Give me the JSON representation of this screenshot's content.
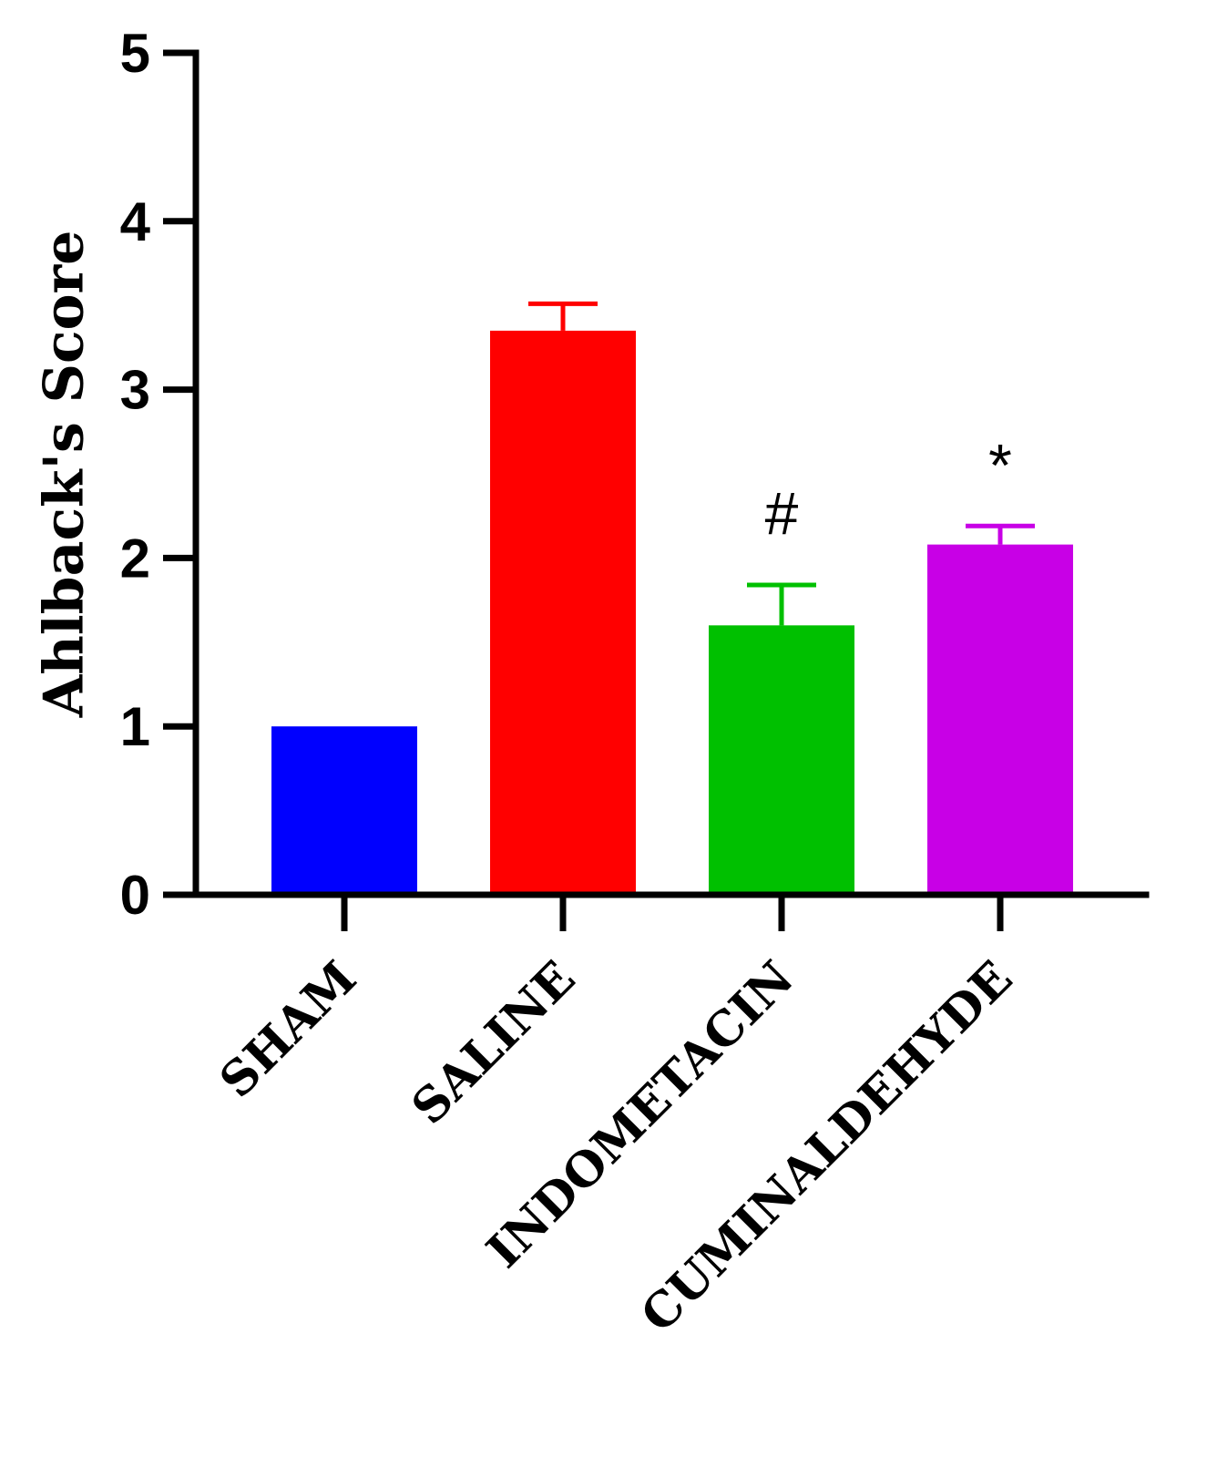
{
  "chart_data": {
    "type": "bar",
    "title": "",
    "xlabel": "",
    "ylabel": "Ahlback's Score",
    "ylim": [
      0,
      5
    ],
    "yticks": [
      "0",
      "1",
      "2",
      "3",
      "4",
      "5"
    ],
    "categories": [
      "SHAM",
      "SALINE",
      "INDOMETACIN",
      "CUMINALDEHYDE"
    ],
    "values": [
      1.0,
      3.35,
      1.6,
      2.08
    ],
    "errors": [
      0.0,
      0.16,
      0.24,
      0.11
    ],
    "colors": [
      "#0000ff",
      "#ff0000",
      "#00c000",
      "#c800e6"
    ],
    "annotations": [
      "",
      "",
      "#",
      "*"
    ],
    "grid": false,
    "legend": "none"
  }
}
